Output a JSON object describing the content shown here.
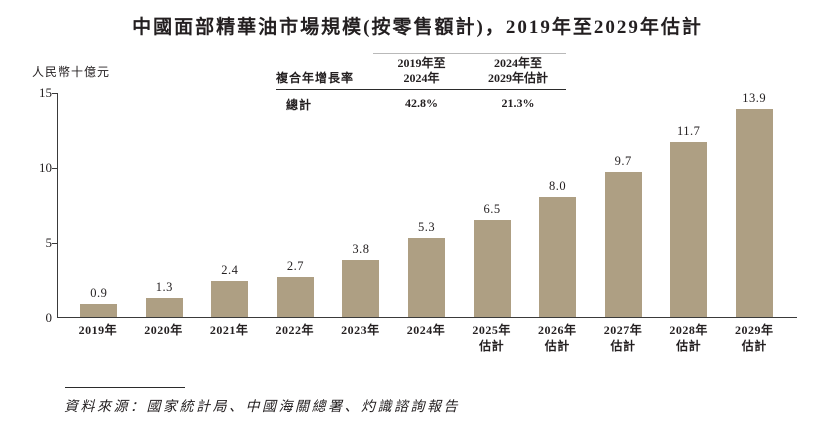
{
  "title": "中國面部精華油市場規模(按零售額計)，2019年至2029年估計",
  "y_axis_title": "人民幣十億元",
  "chart_data": {
    "type": "bar",
    "categories": [
      "2019年",
      "2020年",
      "2021年",
      "2022年",
      "2023年",
      "2024年",
      "2025年估計",
      "2026年估計",
      "2027年估計",
      "2028年估計",
      "2029年估計"
    ],
    "values": [
      0.9,
      1.3,
      2.4,
      2.7,
      3.8,
      5.3,
      6.5,
      8.0,
      9.7,
      11.7,
      13.9
    ],
    "value_labels": [
      "0.9",
      "1.3",
      "2.4",
      "2.7",
      "3.8",
      "5.3",
      "6.5",
      "8.0",
      "9.7",
      "11.7",
      "13.9"
    ],
    "title": "中國面部精華油市場規模(按零售額計)，2019年至2029年估計",
    "xlabel": "",
    "ylabel": "人民幣十億元",
    "ylim": [
      0,
      15
    ],
    "yticks": [
      0,
      5,
      10,
      15
    ],
    "grid": false,
    "legend": "none",
    "bar_color": "#ae9f83"
  },
  "cagr_table": {
    "row_header": "複合年增長率",
    "col1_line1": "2019年至",
    "col1_line2": "2024年",
    "col2_line1": "2024年至",
    "col2_line2": "2029年估計",
    "total_label": "總計",
    "total_2019_2024": "42.8%",
    "total_2024_2029": "21.3%"
  },
  "source": "資料來源：國家統計局、中國海關總署、灼識諮詢報告"
}
